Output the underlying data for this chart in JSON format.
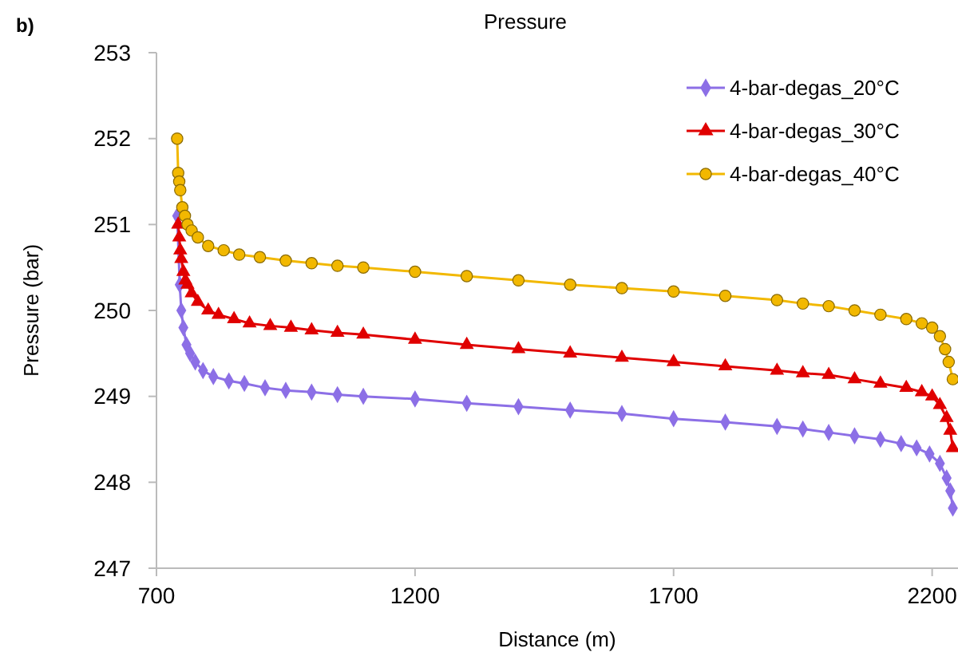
{
  "chart_data": {
    "type": "line",
    "title": "Pressure",
    "xlabel": "Distance (m)",
    "ylabel": "Pressure (bar)",
    "annotations": [
      "b)"
    ],
    "xlim": [
      700,
      2250
    ],
    "xticks": [
      700,
      1200,
      1700,
      2200
    ],
    "ylim": [
      247,
      253
    ],
    "yticks": [
      247,
      248,
      249,
      250,
      251,
      252,
      253
    ],
    "grid": false,
    "legend": "top right",
    "series": [
      {
        "name": "4-bar-degas_20°C",
        "color": "#8c6fe6",
        "marker": "diamond",
        "x": [
          740,
          745,
          748,
          752,
          758,
          765,
          775,
          790,
          810,
          840,
          870,
          910,
          950,
          1000,
          1050,
          1100,
          1200,
          1300,
          1400,
          1500,
          1600,
          1700,
          1800,
          1900,
          1950,
          2000,
          2050,
          2100,
          2140,
          2170,
          2195,
          2215,
          2228,
          2235,
          2240
        ],
        "values": [
          251.1,
          250.3,
          250.0,
          249.8,
          249.6,
          249.5,
          249.4,
          249.3,
          249.23,
          249.18,
          249.15,
          249.1,
          249.07,
          249.05,
          249.02,
          249.0,
          248.97,
          248.92,
          248.88,
          248.84,
          248.8,
          248.74,
          248.7,
          248.65,
          248.62,
          248.58,
          248.54,
          248.5,
          248.45,
          248.4,
          248.33,
          248.22,
          248.05,
          247.9,
          247.7
        ]
      },
      {
        "name": "4-bar-degas_30°C",
        "color": "#e00000",
        "marker": "triangle",
        "x": [
          742,
          744,
          746,
          748,
          752,
          756,
          760,
          768,
          780,
          800,
          820,
          850,
          880,
          920,
          960,
          1000,
          1050,
          1100,
          1200,
          1300,
          1400,
          1500,
          1600,
          1700,
          1800,
          1900,
          1950,
          2000,
          2050,
          2100,
          2150,
          2180,
          2200,
          2215,
          2228,
          2235,
          2240
        ],
        "values": [
          251.0,
          250.85,
          250.7,
          250.6,
          250.45,
          250.35,
          250.3,
          250.2,
          250.1,
          250.0,
          249.95,
          249.9,
          249.85,
          249.82,
          249.8,
          249.77,
          249.74,
          249.72,
          249.66,
          249.6,
          249.55,
          249.5,
          249.45,
          249.4,
          249.35,
          249.3,
          249.27,
          249.25,
          249.2,
          249.15,
          249.1,
          249.05,
          249.0,
          248.9,
          248.75,
          248.6,
          248.4
        ]
      },
      {
        "name": "4-bar-degas_40°C",
        "color": "#f2b800",
        "marker": "circle",
        "x": [
          740,
          742,
          744,
          746,
          750,
          755,
          760,
          768,
          780,
          800,
          830,
          860,
          900,
          950,
          1000,
          1050,
          1100,
          1200,
          1300,
          1400,
          1500,
          1600,
          1700,
          1800,
          1900,
          1950,
          2000,
          2050,
          2100,
          2150,
          2180,
          2200,
          2215,
          2225,
          2232,
          2240
        ],
        "values": [
          252.0,
          251.6,
          251.5,
          251.4,
          251.2,
          251.1,
          251.0,
          250.93,
          250.85,
          250.75,
          250.7,
          250.65,
          250.62,
          250.58,
          250.55,
          250.52,
          250.5,
          250.45,
          250.4,
          250.35,
          250.3,
          250.26,
          250.22,
          250.17,
          250.12,
          250.08,
          250.05,
          250.0,
          249.95,
          249.9,
          249.85,
          249.8,
          249.7,
          249.55,
          249.4,
          249.2
        ]
      }
    ]
  }
}
